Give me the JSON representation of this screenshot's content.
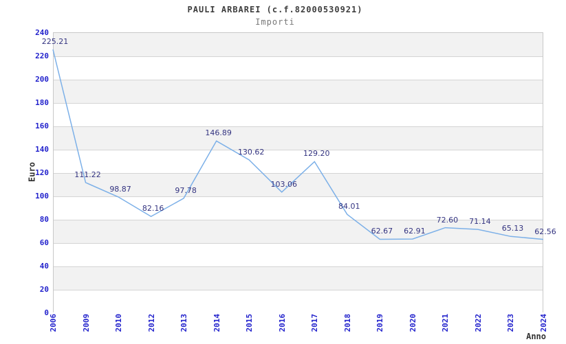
{
  "chart_data": {
    "type": "line",
    "title": "PAULI ARBAREI (c.f.82000530921)",
    "subtitle": "Importi",
    "xlabel": "Anno",
    "ylabel": "Euro",
    "categories": [
      "2006",
      "2009",
      "2010",
      "2012",
      "2013",
      "2014",
      "2015",
      "2016",
      "2017",
      "2018",
      "2019",
      "2020",
      "2021",
      "2022",
      "2023",
      "2024"
    ],
    "series": [
      {
        "name": "Importi",
        "values": [
          225.21,
          111.22,
          98.87,
          82.16,
          97.78,
          146.89,
          130.62,
          103.06,
          129.2,
          84.01,
          62.67,
          62.91,
          72.6,
          71.14,
          65.13,
          62.56
        ]
      }
    ],
    "ylim": [
      0,
      240
    ],
    "ytick_step": 20,
    "grid": "horizontal",
    "background_bands": "alternating gray/white, gray topmost",
    "legend_position": "none",
    "data_labels": "above each point, 2 decimals",
    "colors": {
      "line": "#7cb0e8",
      "tick_labels": "#2222cc",
      "data_labels": "#333380",
      "band_gray": "#f2f2f2",
      "gridline": "#d4d4d4",
      "plot_border": "#c8c8c8",
      "title": "#3d3d3d",
      "subtitle": "#787878",
      "axis_titles": "#333333"
    }
  }
}
